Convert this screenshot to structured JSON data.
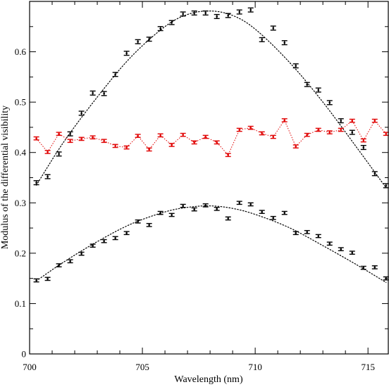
{
  "chart_data": {
    "type": "scatter",
    "title": "",
    "xlabel": "Wavelength (nm)",
    "ylabel": "Modulus of the differential visibility",
    "xlim": [
      700,
      715.9
    ],
    "ylim": [
      0,
      0.7
    ],
    "grid": false,
    "legend": "none",
    "x_ticks": [
      700,
      705,
      710,
      715
    ],
    "y_ticks": [
      0,
      0.1,
      0.2,
      0.3,
      0.4,
      0.5,
      0.6
    ],
    "series": [
      {
        "color": "#000000",
        "marker": "errorbar",
        "x": [
          700.3,
          700.8,
          701.3,
          701.8,
          702.3,
          702.8,
          703.3,
          703.8,
          704.3,
          704.8,
          705.3,
          705.8,
          706.3,
          706.8,
          707.3,
          707.8,
          708.3,
          708.8,
          709.3,
          709.8,
          710.3,
          710.8,
          711.3,
          711.8,
          712.3,
          712.8,
          713.3,
          713.8,
          714.3,
          714.8,
          715.3,
          715.8
        ],
        "y": [
          0.34,
          0.352,
          0.397,
          0.437,
          0.478,
          0.518,
          0.517,
          0.555,
          0.597,
          0.62,
          0.625,
          0.646,
          0.658,
          0.675,
          0.677,
          0.677,
          0.67,
          0.672,
          0.679,
          0.683,
          0.624,
          0.647,
          0.618,
          0.572,
          0.535,
          0.524,
          0.499,
          0.463,
          0.44,
          0.41,
          0.358,
          0.334
        ],
        "error": 0.004,
        "fit": {
          "style": "dotted",
          "x": [
            700.3,
            701.5,
            703.0,
            704.5,
            706.0,
            707.0,
            708.0,
            709.0,
            710.0,
            711.5,
            713.0,
            714.5,
            715.8
          ],
          "y": [
            0.335,
            0.42,
            0.51,
            0.59,
            0.65,
            0.674,
            0.681,
            0.672,
            0.645,
            0.58,
            0.5,
            0.41,
            0.33
          ]
        }
      },
      {
        "color": "#e00000",
        "marker": "errorbar",
        "line": "dotted",
        "x": [
          700.3,
          700.8,
          701.3,
          701.8,
          702.3,
          702.8,
          703.3,
          703.8,
          704.3,
          704.8,
          705.3,
          705.8,
          706.3,
          706.8,
          707.3,
          707.8,
          708.3,
          708.8,
          709.3,
          709.8,
          710.3,
          710.8,
          711.3,
          711.8,
          712.3,
          712.8,
          713.3,
          713.8,
          714.3,
          714.8,
          715.3,
          715.8
        ],
        "y": [
          0.428,
          0.401,
          0.437,
          0.423,
          0.427,
          0.43,
          0.423,
          0.413,
          0.41,
          0.433,
          0.406,
          0.434,
          0.415,
          0.435,
          0.42,
          0.431,
          0.42,
          0.395,
          0.445,
          0.449,
          0.438,
          0.431,
          0.464,
          0.412,
          0.435,
          0.445,
          0.44,
          0.445,
          0.463,
          0.424,
          0.463,
          0.437
        ],
        "error": 0.003
      },
      {
        "color": "#000000",
        "marker": "errorbar",
        "x": [
          700.3,
          700.8,
          701.3,
          701.8,
          702.3,
          702.8,
          703.3,
          703.8,
          704.3,
          704.8,
          705.3,
          705.8,
          706.3,
          706.8,
          707.3,
          707.8,
          708.3,
          708.8,
          709.3,
          709.8,
          710.3,
          710.8,
          711.3,
          711.8,
          712.3,
          712.8,
          713.3,
          713.8,
          714.3,
          714.8,
          715.3,
          715.8
        ],
        "y": [
          0.146,
          0.149,
          0.176,
          0.184,
          0.199,
          0.215,
          0.224,
          0.23,
          0.24,
          0.263,
          0.256,
          0.28,
          0.276,
          0.294,
          0.287,
          0.295,
          0.288,
          0.269,
          0.3,
          0.297,
          0.282,
          0.27,
          0.28,
          0.24,
          0.242,
          0.234,
          0.219,
          0.208,
          0.201,
          0.171,
          0.172,
          0.15
        ],
        "error": 0.003,
        "fit": {
          "style": "dotted",
          "x": [
            700.3,
            701.5,
            703.0,
            704.5,
            706.0,
            707.0,
            708.0,
            709.0,
            710.0,
            711.5,
            713.0,
            714.5,
            715.8
          ],
          "y": [
            0.145,
            0.182,
            0.223,
            0.258,
            0.282,
            0.291,
            0.294,
            0.289,
            0.277,
            0.251,
            0.215,
            0.177,
            0.142
          ]
        }
      }
    ]
  }
}
